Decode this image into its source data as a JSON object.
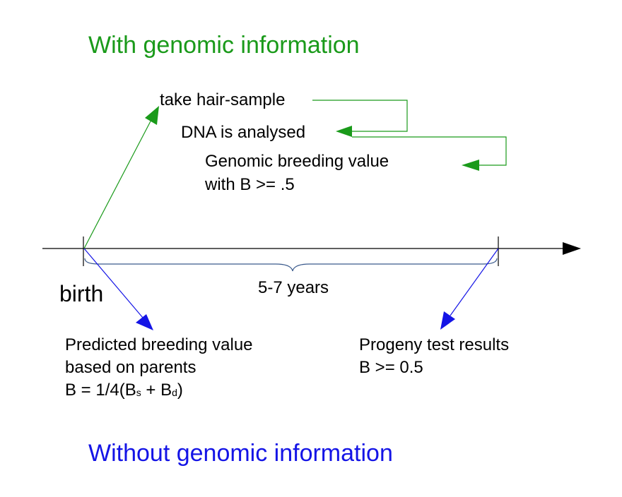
{
  "top_heading": "With genomic information",
  "bottom_heading": "Without genomic information",
  "genomic_steps": {
    "hair_sample": "take hair-sample",
    "dna": "DNA is analysed",
    "gbv_line1": "Genomic breeding value",
    "gbv_line2": "with B >= .5"
  },
  "timeline": {
    "start_label": "birth",
    "span_label": "5-7 years"
  },
  "predicted": {
    "line1": "Predicted breeding value",
    "line2": "based on parents",
    "formula_prefix": "B = 1/4(B",
    "sub_s": "s",
    "formula_mid": " + B",
    "sub_d": "d",
    "formula_suffix": ")"
  },
  "progeny": {
    "line1": "Progeny test results",
    "line2": "B >= 0.5"
  },
  "colors": {
    "genomic": "#1a9a1a",
    "traditional": "#1414e6",
    "axis": "#000000",
    "brace": "#3a5a8c"
  }
}
